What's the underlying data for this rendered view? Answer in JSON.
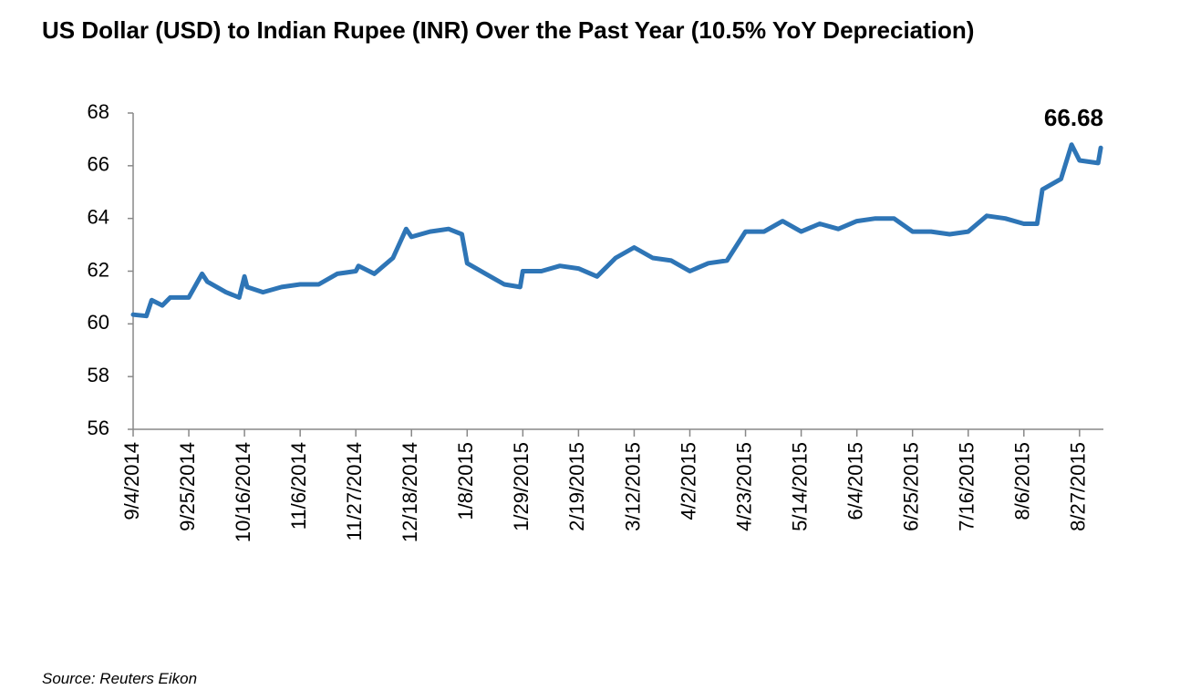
{
  "chart_data": {
    "type": "line",
    "title": "US Dollar (USD) to Indian Rupee (INR) Over the Past Year (10.5% YoY Depreciation)",
    "source": "Source: Reuters Eikon",
    "x": [
      "9/4/2014",
      "9/9/2014",
      "9/11/2014",
      "9/15/2014",
      "9/18/2014",
      "9/25/2014",
      "9/30/2014",
      "10/2/2014",
      "10/9/2014",
      "10/14/2014",
      "10/16/2014",
      "10/17/2014",
      "10/23/2014",
      "10/30/2014",
      "11/6/2014",
      "11/13/2014",
      "11/20/2014",
      "11/27/2014",
      "11/28/2014",
      "12/4/2014",
      "12/11/2014",
      "12/16/2014",
      "12/18/2014",
      "12/25/2014",
      "1/1/2015",
      "1/6/2015",
      "1/8/2015",
      "1/15/2015",
      "1/22/2015",
      "1/28/2015",
      "1/29/2015",
      "2/5/2015",
      "2/12/2015",
      "2/19/2015",
      "2/26/2015",
      "3/5/2015",
      "3/12/2015",
      "3/19/2015",
      "3/26/2015",
      "4/2/2015",
      "4/9/2015",
      "4/16/2015",
      "4/23/2015",
      "4/30/2015",
      "5/7/2015",
      "5/14/2015",
      "5/21/2015",
      "5/28/2015",
      "6/4/2015",
      "6/11/2015",
      "6/18/2015",
      "6/25/2015",
      "7/2/2015",
      "7/9/2015",
      "7/16/2015",
      "7/23/2015",
      "7/30/2015",
      "8/6/2015",
      "8/11/2015",
      "8/13/2015",
      "8/20/2015",
      "8/24/2015",
      "8/27/2015",
      "9/3/2015",
      "9/4/2015"
    ],
    "series": [
      {
        "name": "USD/INR",
        "color": "#2e75b6",
        "values": [
          60.35,
          60.3,
          60.9,
          60.7,
          61.0,
          61.0,
          61.9,
          61.6,
          61.2,
          61.0,
          61.8,
          61.4,
          61.2,
          61.4,
          61.5,
          61.5,
          61.9,
          62.0,
          62.2,
          61.9,
          62.5,
          63.6,
          63.3,
          63.5,
          63.6,
          63.4,
          62.3,
          61.9,
          61.5,
          61.4,
          62.0,
          62.0,
          62.2,
          62.1,
          61.8,
          62.5,
          62.9,
          62.5,
          62.4,
          62.0,
          62.3,
          62.4,
          63.5,
          63.5,
          63.9,
          63.5,
          63.8,
          63.6,
          63.9,
          64.0,
          64.0,
          63.5,
          63.5,
          63.4,
          63.5,
          64.1,
          64.0,
          63.8,
          63.8,
          65.1,
          65.5,
          66.8,
          66.2,
          66.1,
          66.68
        ]
      }
    ],
    "xlim": [
      "9/4/2014",
      "9/5/2015"
    ],
    "xticks": [
      "9/4/2014",
      "9/25/2014",
      "10/16/2014",
      "11/6/2014",
      "11/27/2014",
      "12/18/2014",
      "1/8/2015",
      "1/29/2015",
      "2/19/2015",
      "3/12/2015",
      "4/2/2015",
      "4/23/2015",
      "5/14/2015",
      "6/4/2015",
      "6/25/2015",
      "7/16/2015",
      "8/6/2015",
      "8/27/2015"
    ],
    "ylim": [
      56,
      68
    ],
    "yticks": [
      56,
      58,
      60,
      62,
      64,
      66,
      68
    ],
    "grid": false
  }
}
